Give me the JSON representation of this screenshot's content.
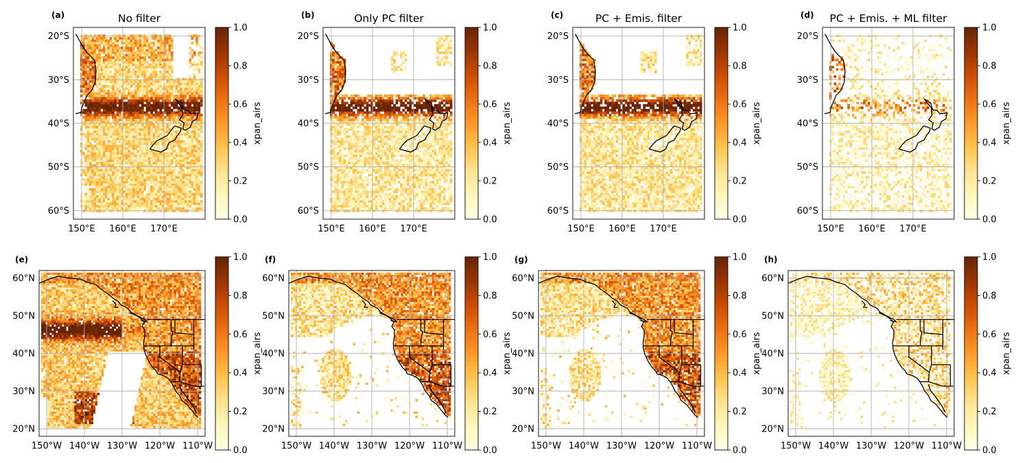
{
  "figure": {
    "colormap": {
      "name": "YlOrBr",
      "stops": [
        "#ffffe5",
        "#fff7bc",
        "#fee391",
        "#fec44f",
        "#fe9929",
        "#ec7014",
        "#cc4c02",
        "#993404",
        "#662506"
      ]
    },
    "colorbar": {
      "label": "xpan_airs",
      "range": [
        0.0,
        1.0
      ],
      "ticks": [
        "0.0",
        "0.2",
        "0.4",
        "0.6",
        "0.8",
        "1.0"
      ]
    }
  },
  "chart_data": [
    {
      "type": "heatmap",
      "panel_label": "(a)",
      "title": "No filter",
      "region": "australia-new-zealand",
      "filter_level": 0,
      "xlim": [
        148,
        180
      ],
      "ylim": [
        -62,
        -18
      ],
      "xticks": [
        150,
        160,
        170
      ],
      "xtick_labels": [
        "150°E",
        "160°E",
        "170°E"
      ],
      "yticks": [
        -20,
        -30,
        -40,
        -50,
        -60
      ],
      "ytick_labels": [
        "20°S",
        "30°S",
        "40°S",
        "50°S",
        "60°S"
      ],
      "colorbar_label": "xpan_airs",
      "colorbar_range": [
        0,
        1
      ],
      "description_values": {
        "band_high_lat": [
          -33,
          -40
        ],
        "band_peak_value": 1.0,
        "background_value": 0.25
      }
    },
    {
      "type": "heatmap",
      "panel_label": "(b)",
      "title": "Only PC filter",
      "region": "australia-new-zealand",
      "filter_level": 1,
      "xlim": [
        148,
        180
      ],
      "ylim": [
        -62,
        -18
      ],
      "xticks": [
        150,
        160,
        170
      ],
      "xtick_labels": [
        "150°E",
        "160°E",
        "170°E"
      ],
      "yticks": [
        -20,
        -30,
        -40,
        -50,
        -60
      ],
      "ytick_labels": [
        "20°S",
        "30°S",
        "40°S",
        "50°S",
        "60°S"
      ],
      "colorbar_label": "xpan_airs",
      "colorbar_range": [
        0,
        1
      ],
      "description_values": {
        "band_high_lat": [
          -35,
          -38
        ],
        "band_peak_value": 1.0,
        "background_value": 0.2
      }
    },
    {
      "type": "heatmap",
      "panel_label": "(c)",
      "title": "PC + Emis. filter",
      "region": "australia-new-zealand",
      "filter_level": 2,
      "xlim": [
        148,
        180
      ],
      "ylim": [
        -62,
        -18
      ],
      "xticks": [
        150,
        160,
        170
      ],
      "xtick_labels": [
        "150°E",
        "160°E",
        "170°E"
      ],
      "yticks": [
        -20,
        -30,
        -40,
        -50,
        -60
      ],
      "ytick_labels": [
        "20°S",
        "30°S",
        "40°S",
        "50°S",
        "60°S"
      ],
      "colorbar_label": "xpan_airs",
      "colorbar_range": [
        0,
        1
      ],
      "description_values": {
        "band_high_lat": [
          -35,
          -38
        ],
        "band_peak_value": 1.0,
        "background_value": 0.2
      }
    },
    {
      "type": "heatmap",
      "panel_label": "(d)",
      "title": "PC + Emis. + ML filter",
      "region": "australia-new-zealand",
      "filter_level": 3,
      "xlim": [
        148,
        180
      ],
      "ylim": [
        -62,
        -18
      ],
      "xticks": [
        150,
        160,
        170
      ],
      "xtick_labels": [
        "150°E",
        "160°E",
        "170°E"
      ],
      "yticks": [
        -20,
        -30,
        -40,
        -50,
        -60
      ],
      "ytick_labels": [
        "20°S",
        "30°S",
        "40°S",
        "50°S",
        "60°S"
      ],
      "colorbar_label": "xpan_airs",
      "colorbar_range": [
        0,
        1
      ],
      "description_values": {
        "band_high_lat": [
          -33,
          -36
        ],
        "band_peak_value": 0.8,
        "background_value": 0.1
      }
    },
    {
      "type": "heatmap",
      "panel_label": "(e)",
      "title": "",
      "region": "north-america-west",
      "filter_level": 0,
      "xlim": [
        -152,
        -108
      ],
      "ylim": [
        18,
        62
      ],
      "xticks": [
        -150,
        -140,
        -130,
        -120,
        -110
      ],
      "xtick_labels": [
        "150°W",
        "140°W",
        "130°W",
        "120°W",
        "110°W"
      ],
      "yticks": [
        60,
        50,
        40,
        30,
        20
      ],
      "ytick_labels": [
        "60°N",
        "50°N",
        "40°N",
        "30°N",
        "20°N"
      ],
      "colorbar_label": "xpan_airs",
      "colorbar_range": [
        0,
        1
      ],
      "description_values": {
        "band_high_lat": [
          43,
          49
        ],
        "band_peak_value": 1.0,
        "background_value": 0.3
      }
    },
    {
      "type": "heatmap",
      "panel_label": "(f)",
      "title": "",
      "region": "north-america-west",
      "filter_level": 1,
      "xlim": [
        -152,
        -108
      ],
      "ylim": [
        18,
        62
      ],
      "xticks": [
        -150,
        -140,
        -130,
        -120,
        -110
      ],
      "xtick_labels": [
        "150°W",
        "140°W",
        "130°W",
        "120°W",
        "110°W"
      ],
      "yticks": [
        60,
        50,
        40,
        30,
        20
      ],
      "ytick_labels": [
        "60°N",
        "50°N",
        "40°N",
        "30°N",
        "20°N"
      ],
      "colorbar_label": "xpan_airs",
      "colorbar_range": [
        0,
        1
      ],
      "description_values": {
        "band_high_lat": [
          28,
          40
        ],
        "band_peak_value": 1.0,
        "background_value": 0.25
      }
    },
    {
      "type": "heatmap",
      "panel_label": "(g)",
      "title": "",
      "region": "north-america-west",
      "filter_level": 2,
      "xlim": [
        -152,
        -108
      ],
      "ylim": [
        18,
        62
      ],
      "xticks": [
        -150,
        -140,
        -130,
        -120,
        -110
      ],
      "xtick_labels": [
        "150°W",
        "140°W",
        "130°W",
        "120°W",
        "110°W"
      ],
      "yticks": [
        60,
        50,
        40,
        30,
        20
      ],
      "ytick_labels": [
        "60°N",
        "50°N",
        "40°N",
        "30°N",
        "20°N"
      ],
      "colorbar_label": "xpan_airs",
      "colorbar_range": [
        0,
        1
      ],
      "description_values": {
        "band_high_lat": [
          28,
          40
        ],
        "band_peak_value": 1.0,
        "background_value": 0.25
      }
    },
    {
      "type": "heatmap",
      "panel_label": "(h)",
      "title": "",
      "region": "north-america-west",
      "filter_level": 3,
      "xlim": [
        -152,
        -108
      ],
      "ylim": [
        18,
        62
      ],
      "xticks": [
        -150,
        -140,
        -130,
        -120,
        -110
      ],
      "xtick_labels": [
        "150°W",
        "140°W",
        "130°W",
        "120°W",
        "110°W"
      ],
      "yticks": [
        60,
        50,
        40,
        30,
        20
      ],
      "ytick_labels": [
        "60°N",
        "50°N",
        "40°N",
        "30°N",
        "20°N"
      ],
      "colorbar_label": "xpan_airs",
      "colorbar_range": [
        0,
        1
      ],
      "description_values": {
        "band_high_lat": [
          32,
          38
        ],
        "band_peak_value": 0.8,
        "background_value": 0.1
      }
    }
  ]
}
